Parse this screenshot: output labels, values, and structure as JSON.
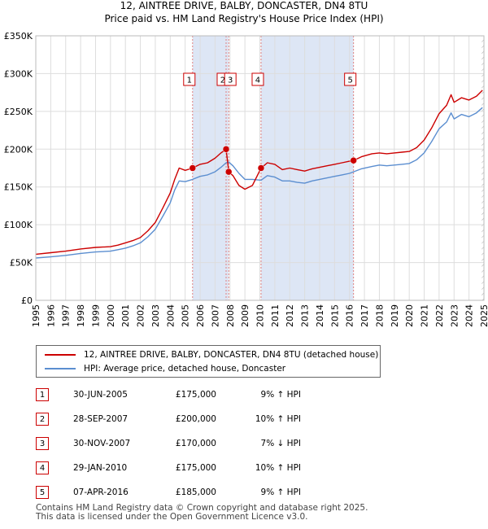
{
  "chart_data": {
    "type": "line",
    "title": "12, AINTREE DRIVE, BALBY, DONCASTER, DN4 8TU",
    "subtitle": "Price paid vs. HM Land Registry's House Price Index (HPI)",
    "xlabel": "",
    "ylabel": "",
    "xlim": [
      1995,
      2025
    ],
    "ylim": [
      0,
      350000
    ],
    "y_ticks": [
      0,
      50000,
      100000,
      150000,
      200000,
      250000,
      300000,
      350000
    ],
    "y_tick_labels": [
      "£0",
      "£50K",
      "£100K",
      "£150K",
      "£200K",
      "£250K",
      "£300K",
      "£350K"
    ],
    "x_ticks": [
      "1995",
      "1996",
      "1997",
      "1998",
      "1999",
      "2000",
      "2001",
      "2002",
      "2003",
      "2004",
      "2005",
      "2006",
      "2007",
      "2008",
      "2009",
      "2010",
      "2011",
      "2012",
      "2013",
      "2014",
      "2015",
      "2016",
      "2017",
      "2018",
      "2019",
      "2020",
      "2021",
      "2022",
      "2023",
      "2024",
      "2025"
    ],
    "grid": true,
    "series": [
      {
        "name": "12, AINTREE DRIVE, BALBY, DONCASTER, DN4 8TU (detached house)",
        "color": "#cc0000",
        "x": [
          1995.0,
          1996.0,
          1997.0,
          1998.0,
          1999.0,
          2000.0,
          2000.5,
          2001.0,
          2001.5,
          2002.0,
          2002.5,
          2003.0,
          2003.5,
          2004.0,
          2004.3,
          2004.6,
          2005.0,
          2005.5,
          2006.0,
          2006.5,
          2007.0,
          2007.4,
          2007.74,
          2007.92,
          2008.2,
          2008.6,
          2009.0,
          2009.5,
          2010.08,
          2010.5,
          2011.0,
          2011.5,
          2012.0,
          2012.5,
          2013.0,
          2013.5,
          2014.0,
          2014.5,
          2015.0,
          2015.5,
          2016.0,
          2016.27,
          2016.8,
          2017.5,
          2018.0,
          2018.5,
          2019.0,
          2019.5,
          2020.0,
          2020.5,
          2021.0,
          2021.5,
          2022.0,
          2022.5,
          2022.8,
          2023.0,
          2023.5,
          2024.0,
          2024.5,
          2024.9
        ],
        "values": [
          61000,
          63000,
          65000,
          68000,
          70000,
          71000,
          73000,
          76000,
          79000,
          83000,
          92000,
          103000,
          122000,
          142000,
          160000,
          175000,
          172000,
          175000,
          180000,
          182000,
          188000,
          195000,
          200000,
          170000,
          165000,
          152000,
          147000,
          152000,
          175000,
          182000,
          180000,
          173000,
          175000,
          173000,
          171000,
          174000,
          176000,
          178000,
          180000,
          182000,
          184000,
          185000,
          190000,
          194000,
          195000,
          194000,
          195000,
          196000,
          197000,
          202000,
          212000,
          228000,
          247000,
          258000,
          272000,
          262000,
          268000,
          265000,
          270000,
          278000
        ]
      },
      {
        "name": "HPI: Average price, detached house, Doncaster",
        "color": "#5b8ed0",
        "x": [
          1995.0,
          1996.0,
          1997.0,
          1998.0,
          1999.0,
          2000.0,
          2000.5,
          2001.0,
          2001.5,
          2002.0,
          2002.5,
          2003.0,
          2003.5,
          2004.0,
          2004.3,
          2004.6,
          2005.0,
          2005.5,
          2006.0,
          2006.5,
          2007.0,
          2007.4,
          2007.74,
          2007.92,
          2008.2,
          2008.6,
          2009.0,
          2009.5,
          2010.08,
          2010.5,
          2011.0,
          2011.5,
          2012.0,
          2012.5,
          2013.0,
          2013.5,
          2014.0,
          2014.5,
          2015.0,
          2015.5,
          2016.0,
          2016.27,
          2016.8,
          2017.5,
          2018.0,
          2018.5,
          2019.0,
          2019.5,
          2020.0,
          2020.5,
          2021.0,
          2021.5,
          2022.0,
          2022.5,
          2022.8,
          2023.0,
          2023.5,
          2024.0,
          2024.5,
          2024.9
        ],
        "values": [
          56000,
          57500,
          59500,
          62000,
          64000,
          65000,
          67000,
          69000,
          72000,
          76000,
          84000,
          94000,
          111000,
          129000,
          146000,
          158000,
          157000,
          160000,
          164000,
          166000,
          170000,
          176000,
          182000,
          183000,
          178000,
          168000,
          160000,
          160000,
          159000,
          165000,
          163000,
          158000,
          158000,
          156000,
          155000,
          158000,
          160000,
          162000,
          164000,
          166000,
          168000,
          170000,
          174000,
          177000,
          179000,
          178000,
          179000,
          180000,
          181000,
          186000,
          195000,
          210000,
          227000,
          236000,
          248000,
          240000,
          246000,
          243000,
          248000,
          255000
        ]
      }
    ],
    "sales": [
      {
        "label": "1",
        "x": 2005.496,
        "value": 175000
      },
      {
        "label": "2",
        "x": 2007.74,
        "value": 200000
      },
      {
        "label": "3",
        "x": 2007.914,
        "value": 170000
      },
      {
        "label": "4",
        "x": 2010.08,
        "value": 175000
      },
      {
        "label": "5",
        "x": 2016.27,
        "value": 185000
      }
    ],
    "shaded_ranges": [
      [
        2005.496,
        2007.914
      ],
      [
        2010.08,
        2016.27
      ]
    ],
    "future_hatch_from": 2024.85
  },
  "legend": {
    "items": [
      {
        "label": "12, AINTREE DRIVE, BALBY, DONCASTER, DN4 8TU (detached house)",
        "color": "#cc0000"
      },
      {
        "label": "HPI: Average price, detached house, Doncaster",
        "color": "#5b8ed0"
      }
    ]
  },
  "table": {
    "rows": [
      {
        "num": "1",
        "date": "30-JUN-2005",
        "price": "£175,000",
        "hpi": "9% ↑ HPI"
      },
      {
        "num": "2",
        "date": "28-SEP-2007",
        "price": "£200,000",
        "hpi": "10% ↑ HPI"
      },
      {
        "num": "3",
        "date": "30-NOV-2007",
        "price": "£170,000",
        "hpi": "7% ↓ HPI"
      },
      {
        "num": "4",
        "date": "29-JAN-2010",
        "price": "£175,000",
        "hpi": "10% ↑ HPI"
      },
      {
        "num": "5",
        "date": "07-APR-2016",
        "price": "£185,000",
        "hpi": "9% ↑ HPI"
      }
    ]
  },
  "footer": {
    "line1": "Contains HM Land Registry data © Crown copyright and database right 2025.",
    "line2": "This data is licensed under the Open Government Licence v3.0."
  },
  "colors": {
    "accent": "#cc0000",
    "hpi": "#5b8ed0",
    "shade": "#dde6f5",
    "grid": "#dddddd"
  }
}
